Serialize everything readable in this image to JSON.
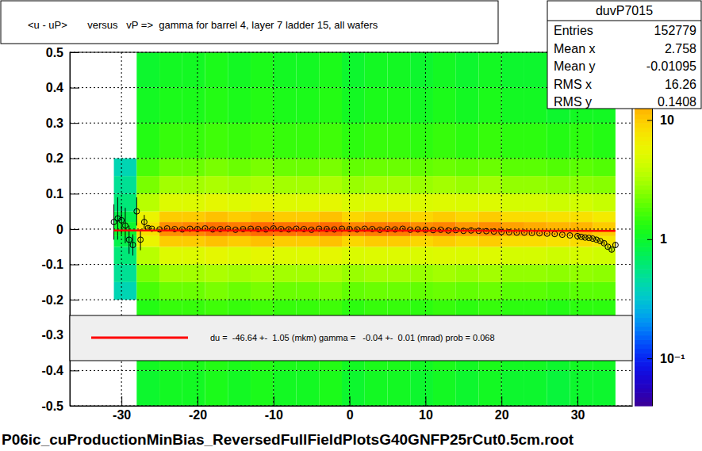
{
  "chart_data": {
    "type": "heatmap",
    "title": "<u - uP>       versus   vP =>  gamma for barrel 4, layer 7 ladder 15, all wafers",
    "footer": "P06ic_cuProductionMinBias_ReversedFullFieldPlotsG40GNFP25rCut0.5cm.root",
    "xlim": [
      -36.8,
      37.2
    ],
    "ylim": [
      -0.5,
      0.5
    ],
    "xticks": [
      -30,
      -20,
      -10,
      0,
      10,
      20,
      30
    ],
    "yticks": [
      -0.5,
      -0.4,
      -0.3,
      -0.2,
      -0.1,
      0,
      0.1,
      0.2,
      0.3,
      0.4,
      0.5
    ],
    "grid": true,
    "x_edges": [
      -31,
      -28,
      -25,
      -22,
      -19,
      -16,
      -13,
      -10,
      -7,
      -4,
      -1,
      2,
      5,
      8,
      11,
      14,
      17,
      20,
      23,
      26,
      29,
      32,
      35
    ],
    "y_edges": [
      -0.5,
      -0.4,
      -0.3,
      -0.2,
      -0.15,
      -0.1,
      -0.05,
      -0.02,
      0.02,
      0.05,
      0.1,
      0.15,
      0.2,
      0.3,
      0.4,
      0.5
    ],
    "cells": [
      [
        0,
        1,
        1.1,
        1.1,
        1.2,
        1.1,
        1.2,
        1.1,
        1.1,
        1.2,
        1,
        1.1,
        1.1,
        1,
        1.1,
        1,
        1.1,
        1,
        1,
        0.9,
        1,
        1
      ],
      [
        0,
        1.1,
        1.2,
        1.2,
        1.3,
        1.2,
        1.3,
        1.2,
        1.2,
        1.3,
        1.1,
        1.2,
        1.2,
        1.1,
        1.2,
        1.1,
        1.2,
        1.1,
        1.1,
        1,
        1.1,
        1.1
      ],
      [
        0,
        1.3,
        1.5,
        1.5,
        1.6,
        1.5,
        1.6,
        1.5,
        1.5,
        1.6,
        1.4,
        1.5,
        1.5,
        1.4,
        1.5,
        1.4,
        1.5,
        1.4,
        1.4,
        1.3,
        1.4,
        1.4
      ],
      [
        0.4,
        1.7,
        2.1,
        2.1,
        2.3,
        2.1,
        2.3,
        2.1,
        2.1,
        2.3,
        2,
        2.1,
        2.1,
        2,
        2.1,
        2,
        2.1,
        1.9,
        1.9,
        1.8,
        1.9,
        1.9
      ],
      [
        0.5,
        2.3,
        3,
        3,
        3.2,
        3,
        3.2,
        3,
        3,
        3.2,
        2.8,
        3,
        3,
        2.8,
        3,
        2.8,
        3,
        2.7,
        2.7,
        2.6,
        2.7,
        2.6
      ],
      [
        0.6,
        3.5,
        5,
        5,
        5.5,
        5,
        5.5,
        5,
        5,
        5.5,
        4.8,
        5,
        5,
        4.8,
        5,
        4.8,
        5,
        4.5,
        4.5,
        4.2,
        4.5,
        4.3
      ],
      [
        0.8,
        6,
        10,
        10,
        11,
        10,
        11,
        10,
        10,
        11,
        9,
        10,
        10,
        9,
        10,
        9,
        10,
        8.5,
        8.5,
        8,
        8.5,
        7.5
      ],
      [
        1,
        8,
        16,
        17,
        19,
        18,
        20,
        19,
        19,
        20,
        17,
        18,
        18,
        16,
        17,
        15,
        16,
        14,
        13,
        12,
        12,
        10
      ],
      [
        0.8,
        6,
        10,
        10,
        11,
        10,
        11,
        10,
        10,
        11,
        9,
        10,
        10,
        9,
        10,
        9,
        10,
        8.5,
        8.5,
        8,
        8,
        7
      ],
      [
        0.6,
        3.5,
        5,
        5,
        5.5,
        5,
        5.5,
        5,
        5,
        5.5,
        4.8,
        5,
        5,
        4.8,
        5,
        4.8,
        5,
        4.5,
        4.5,
        4.2,
        4.4,
        4
      ],
      [
        0.5,
        2.3,
        3,
        3,
        3.2,
        3,
        3.2,
        3,
        3,
        3.2,
        2.8,
        3,
        3,
        2.8,
        3,
        2.8,
        3,
        2.7,
        2.7,
        2.6,
        2.6,
        2.5
      ],
      [
        0.4,
        1.7,
        2.1,
        2.1,
        2.3,
        2.1,
        2.3,
        2.1,
        2.1,
        2.3,
        2,
        2.1,
        2.1,
        2,
        2.1,
        2,
        2.1,
        1.9,
        1.9,
        1.8,
        1.9,
        1.8
      ],
      [
        0,
        1.3,
        1.5,
        1.5,
        1.6,
        1.5,
        1.6,
        1.5,
        1.5,
        1.6,
        1.4,
        1.5,
        1.5,
        1.4,
        1.5,
        1.4,
        1.5,
        1.4,
        1.4,
        1.3,
        1.4,
        1.3
      ],
      [
        0,
        1.1,
        1.2,
        1.2,
        1.3,
        1.2,
        1.3,
        1.2,
        1.2,
        1.3,
        1.1,
        1.2,
        1.2,
        1.1,
        1.2,
        1.1,
        1.2,
        1.1,
        1.1,
        1,
        1.1,
        1.1
      ],
      [
        0,
        1,
        1.1,
        1.1,
        1.2,
        1.1,
        1.2,
        1.1,
        1.1,
        1.2,
        1,
        1.1,
        1.1,
        1,
        1.1,
        1,
        1.1,
        1,
        1,
        0.9,
        1,
        1
      ]
    ],
    "colorbar": {
      "range": [
        0.04,
        37
      ],
      "log": true,
      "ticks": [
        {
          "value": 0.1,
          "label": "10⁻¹"
        },
        1,
        10
      ]
    },
    "series": [
      {
        "type": "scatter",
        "marker": "circle",
        "color": "#000000",
        "x": [
          -31,
          -30.5,
          -30,
          -29.5,
          -29,
          -28.5,
          -28,
          -27.5,
          -27,
          -26.5,
          -26,
          -25,
          -24,
          -23,
          -22,
          -21,
          -20,
          -19,
          -18,
          -17,
          -16,
          -15,
          -14,
          -13,
          -12,
          -11,
          -10,
          -9,
          -8,
          -7,
          -6,
          -5,
          -4,
          -3,
          -2,
          -1,
          0,
          1,
          2,
          3,
          4,
          5,
          6,
          7,
          8,
          9,
          10,
          11,
          12,
          13,
          14,
          15,
          16,
          17,
          18,
          19,
          20,
          21,
          22,
          23,
          24,
          25,
          26,
          27,
          28,
          29,
          30,
          30.5,
          31,
          31.5,
          32,
          32.5,
          33,
          33.5,
          34,
          34.5,
          35
        ],
        "values": [
          0.02,
          0.03,
          0.025,
          0.01,
          -0.03,
          -0.045,
          0.05,
          -0.03,
          0.02,
          0.003,
          0.001,
          -0.001,
          0.002,
          0,
          -0.001,
          0.001,
          0,
          0.002,
          -0.001,
          0,
          0.001,
          -0.002,
          0,
          0.001,
          0,
          -0.001,
          0.002,
          0,
          -0.001,
          0.001,
          0,
          -0.002,
          0.001,
          0,
          -0.001,
          0.001,
          0,
          -0.001,
          0.001,
          0,
          -0.002,
          0,
          -0.001,
          0.001,
          -0.002,
          -0.001,
          -0.002,
          -0.003,
          -0.002,
          -0.004,
          -0.003,
          -0.005,
          -0.004,
          -0.005,
          -0.006,
          -0.007,
          -0.008,
          -0.009,
          -0.01,
          -0.01,
          -0.011,
          -0.012,
          -0.013,
          -0.014,
          -0.016,
          -0.018,
          -0.02,
          -0.022,
          -0.024,
          -0.025,
          -0.027,
          -0.03,
          -0.034,
          -0.04,
          -0.05,
          -0.058,
          -0.045
        ],
        "errors": [
          0.05,
          0.06,
          0.04,
          0.05,
          0.04,
          0.03,
          0.04,
          0.03,
          0.02,
          0.006,
          0.002,
          0.002,
          0.002,
          0.002,
          0.002,
          0.002,
          0.002,
          0.002,
          0.002,
          0.002,
          0.002,
          0.002,
          0.002,
          0.002,
          0.002,
          0.002,
          0.002,
          0.002,
          0.002,
          0.002,
          0.002,
          0.002,
          0.002,
          0.002,
          0.002,
          0.002,
          0.002,
          0.002,
          0.002,
          0.002,
          0.002,
          0.002,
          0.002,
          0.002,
          0.002,
          0.002,
          0.002,
          0.002,
          0.002,
          0.002,
          0.002,
          0.002,
          0.002,
          0.002,
          0.002,
          0.002,
          0.002,
          0.002,
          0.002,
          0.002,
          0.002,
          0.002,
          0.002,
          0.002,
          0.002,
          0.002,
          0.003,
          0.003,
          0.003,
          0.003,
          0.004,
          0.004,
          0.004,
          0.005,
          0.005,
          0.006,
          0.008
        ]
      },
      {
        "type": "line",
        "color": "#ff0000",
        "x": [
          -31,
          35
        ],
        "values": [
          -0.004,
          -0.005
        ]
      }
    ],
    "fit_label": "du =  -46.64 +-  1.05 (mkm) gamma =   -0.04 +-  0.01 (mrad) prob = 0.068",
    "stats": {
      "title": "duvP7015",
      "rows": [
        {
          "label": "Entries",
          "value": 152779
        },
        {
          "label": "Mean x",
          "value": 2.758
        },
        {
          "label": "Mean y",
          "value": -0.01095
        },
        {
          "label": "RMS x",
          "value": 16.26
        },
        {
          "label": "RMS y",
          "value": 0.1408
        }
      ]
    }
  }
}
